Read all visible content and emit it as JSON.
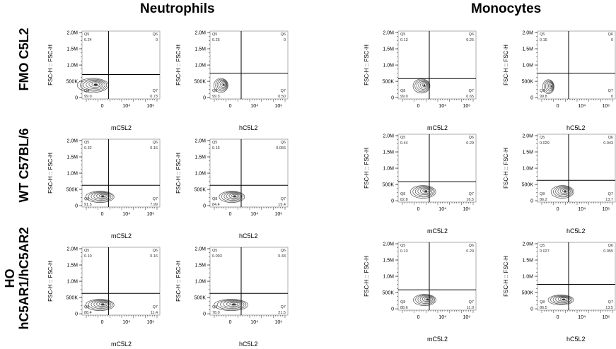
{
  "headers": {
    "left": "Neutrophils",
    "right": "Monocytes"
  },
  "rows": [
    {
      "label": "FMO C5L2"
    },
    {
      "label": "WT C57BL/6"
    },
    {
      "label_line1": "HO",
      "label_line2": "hC5AR1/hC5AR2"
    }
  ],
  "axis": {
    "y_label": "FSC-H :: FSC-H",
    "y_ticks": [
      "2.0M",
      "1.5M",
      "1.0M",
      "500K",
      "0"
    ],
    "x_ticks": [
      "0",
      "10⁴",
      "10⁶"
    ]
  },
  "plots": [
    {
      "id": "r1c1",
      "xlabel": "mC5L2",
      "q5": "0.24",
      "q6": "0",
      "q7": "0.73",
      "q8": "99.0"
    },
    {
      "id": "r1c2",
      "xlabel": "hC5L2",
      "q5": "0.25",
      "q6": "0",
      "q7": "0.50",
      "q8": "99.3"
    },
    {
      "id": "r1c3",
      "xlabel": "mC5L2",
      "q5": "0.13",
      "q6": "0.26",
      "q7": "0.65",
      "q8": "99.0"
    },
    {
      "id": "r1c4",
      "xlabel": "hC5L2",
      "q5": "0.15",
      "q6": "0",
      "q7": "0",
      "q8": "99.8"
    },
    {
      "id": "r2c1",
      "xlabel": "mC5L2",
      "q5": "0.32",
      "q6": "0.16",
      "q7": "7.99",
      "q8": "91.5"
    },
    {
      "id": "r2c2",
      "xlabel": "hC5L2",
      "q5": "0.15",
      "q6": "0.066",
      "q7": "15.4",
      "q8": "84.4"
    },
    {
      "id": "r2c3",
      "xlabel": "mC5L2",
      "q5": "0.44",
      "q6": "0.29",
      "q7": "16.5",
      "q8": "82.8"
    },
    {
      "id": "r2c4",
      "xlabel": "hC5L2",
      "q5": "0.029",
      "q6": "0.043",
      "q7": "13.7",
      "q8": "86.2"
    },
    {
      "id": "r3c1",
      "xlabel": "mC5L2",
      "q5": "0.10",
      "q6": "0.16",
      "q7": "11.4",
      "q8": "88.4"
    },
    {
      "id": "r3c2",
      "xlabel": "hC5L2",
      "q5": "0.093",
      "q6": "0.43",
      "q7": "21.5",
      "q8": "78.0"
    },
    {
      "id": "r3c3",
      "xlabel": "mC5L2",
      "q5": "0.13",
      "q6": "0.29",
      "q7": "11.0",
      "q8": "88.6"
    },
    {
      "id": "r3c4",
      "xlabel": "hC5L2",
      "q5": "0.027",
      "q6": "0.055",
      "q7": "13.5",
      "q8": "86.5"
    }
  ],
  "colors": {
    "contour": "#555555",
    "gate": "#000000",
    "frame": "#999999"
  }
}
